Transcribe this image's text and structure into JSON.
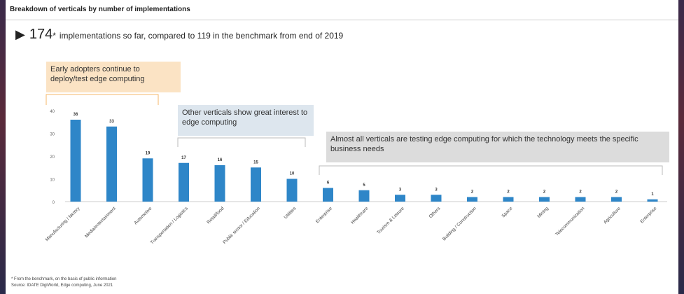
{
  "header": {
    "title": "Breakdown of verticals by number of implementations"
  },
  "headline": {
    "count": "174",
    "mark": "*",
    "text": "implementations so far, compared to 119 in the benchmark from end of 2019"
  },
  "callouts": {
    "early": "Early adopters continue to deploy/test edge computing",
    "other": "Other verticals show great interest to edge computing",
    "almost": "Almost all verticals are testing edge computing for which the technology meets the specific business needs"
  },
  "footnotes": {
    "note": "* From the benchmark, on the basis of public information",
    "source": "Source: IDATE DigiWorld, Edge computing, June 2021"
  },
  "colors": {
    "bar": "#2e86c8",
    "orange": "#f4b768",
    "blue_box": "#dde6ee",
    "gray_box": "#dcdcdc"
  },
  "chart_data": {
    "type": "bar",
    "title": "",
    "xlabel": "",
    "ylabel": "",
    "ylim": [
      0,
      40
    ],
    "yticks": [
      0,
      10,
      20,
      30,
      40
    ],
    "grid": false,
    "categories": [
      "Manufacturing / factory",
      "Media/entertainment",
      "Automotive",
      "Transportation / Logistics",
      "Retail/food",
      "Public sector / Education",
      "Utilities",
      "Enterprise",
      "Healthcare",
      "Tourism & Leisure",
      "Others",
      "Building / Construction",
      "Space",
      "Mining",
      "Telecommunication",
      "Agriculture",
      "Enterprise"
    ],
    "values": [
      36,
      33,
      19,
      17,
      16,
      15,
      10,
      6,
      5,
      3,
      3,
      2,
      2,
      2,
      2,
      2,
      1
    ]
  }
}
